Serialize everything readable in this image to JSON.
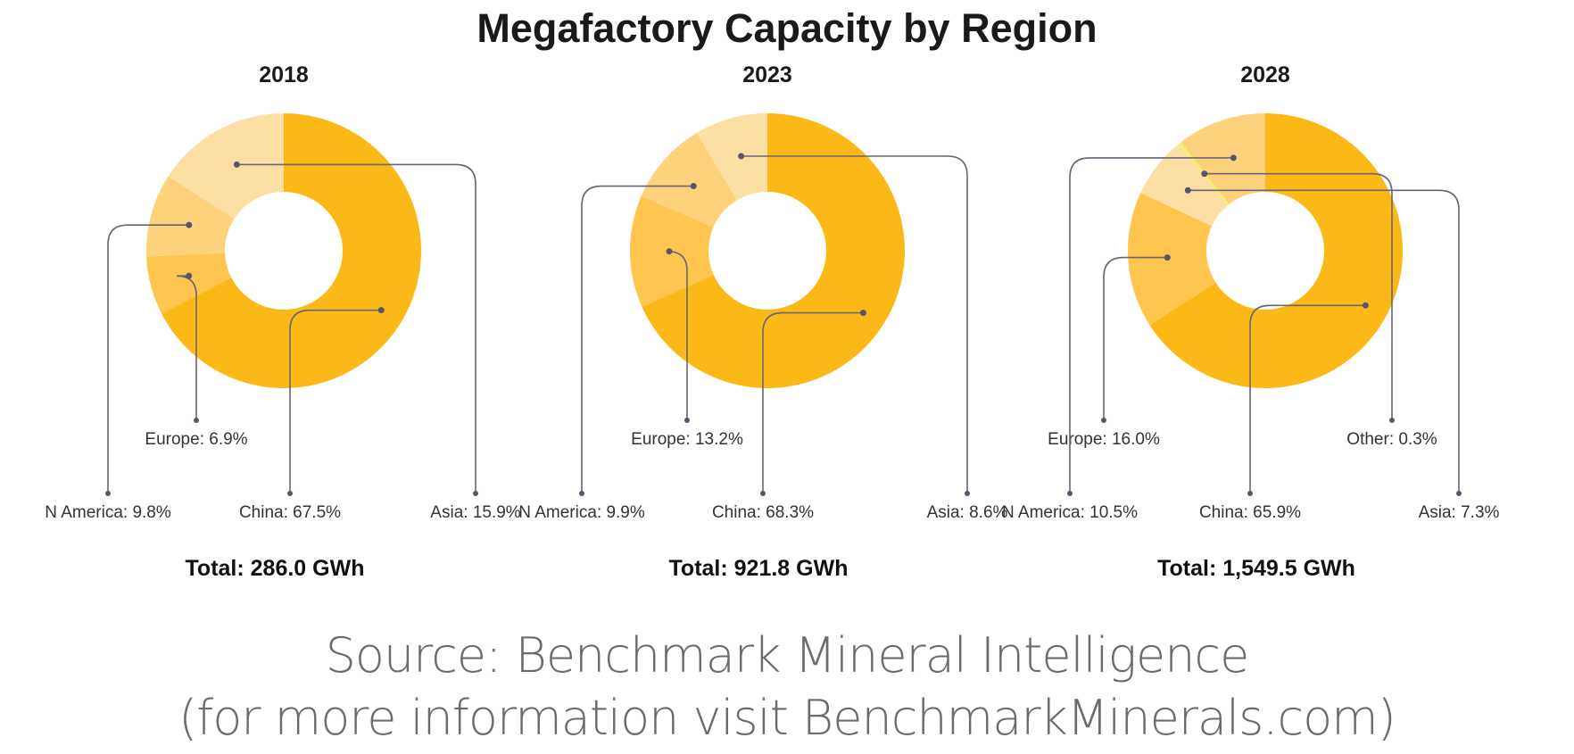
{
  "chart_data": {
    "type": "donut",
    "title": "Megafactory Capacity by Region",
    "colors": {
      "China": "#FBB917",
      "Europe": "#FEC54F",
      "N America": "#FED27D",
      "Asia": "#FEDFA3",
      "Other": "#F2F25A"
    },
    "charts": [
      {
        "year": "2018",
        "total_label": "Total: 286.0 GWh",
        "slices": [
          {
            "name": "China",
            "value": 67.5,
            "label": "China: 67.5%"
          },
          {
            "name": "Europe",
            "value": 6.9,
            "label": "Europe: 6.9%"
          },
          {
            "name": "N America",
            "value": 9.8,
            "label": "N America: 9.8%"
          },
          {
            "name": "Asia",
            "value": 15.9,
            "label": "Asia: 15.9%"
          }
        ]
      },
      {
        "year": "2023",
        "total_label": "Total: 921.8 GWh",
        "slices": [
          {
            "name": "China",
            "value": 68.3,
            "label": "China: 68.3%"
          },
          {
            "name": "Europe",
            "value": 13.2,
            "label": "Europe: 13.2%"
          },
          {
            "name": "N America",
            "value": 9.9,
            "label": "N America: 9.9%"
          },
          {
            "name": "Asia",
            "value": 8.6,
            "label": "Asia: 8.6%"
          }
        ]
      },
      {
        "year": "2028",
        "total_label": "Total: 1,549.5 GWh",
        "slices": [
          {
            "name": "China",
            "value": 65.9,
            "label": "China: 65.9%"
          },
          {
            "name": "Europe",
            "value": 16.0,
            "label": "Europe: 16.0%"
          },
          {
            "name": "Asia",
            "value": 7.3,
            "label": "Asia: 7.3%"
          },
          {
            "name": "Other",
            "value": 0.3,
            "label": "Other: 0.3%"
          },
          {
            "name": "N America",
            "value": 10.5,
            "label": "N America: 10.5%"
          }
        ]
      }
    ]
  },
  "source": {
    "line1": "Source: Benchmark Mineral Intelligence",
    "line2": "(for more information visit BenchmarkMinerals.com)"
  }
}
